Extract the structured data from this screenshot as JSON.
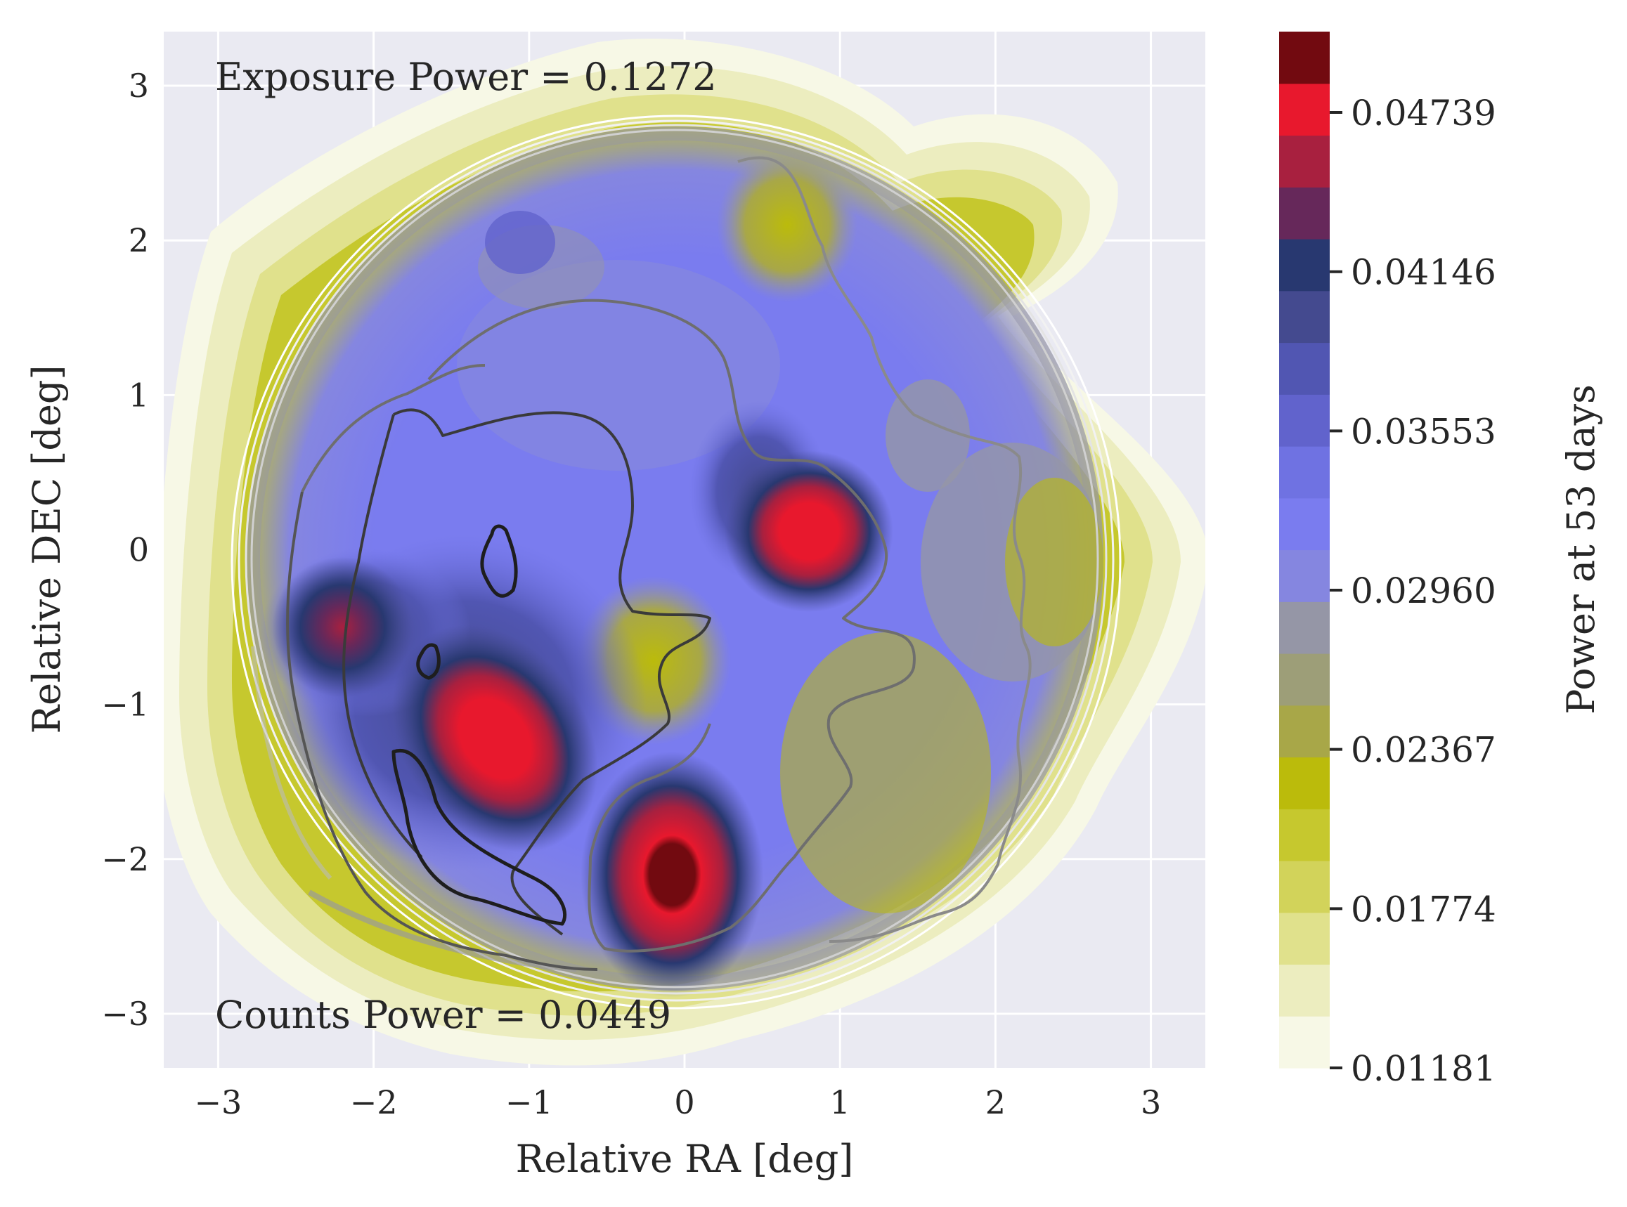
{
  "chart_data": {
    "type": "heatmap",
    "title": "",
    "xlabel": "Relative RA [deg]",
    "ylabel": "Relative DEC [deg]",
    "xlim": [
      -3.35,
      3.35
    ],
    "ylim": [
      -3.35,
      3.35
    ],
    "xticks": [
      -3,
      -2,
      -1,
      0,
      1,
      2,
      3
    ],
    "yticks": [
      -3,
      -2,
      -1,
      0,
      1,
      2,
      3
    ],
    "xtick_labels": [
      "−3",
      "−2",
      "−1",
      "0",
      "1",
      "2",
      "3"
    ],
    "ytick_labels": [
      "−3",
      "−2",
      "−1",
      "0",
      "1",
      "2",
      "3"
    ],
    "grid": true,
    "annotations": {
      "exposure": "Exposure Power = 0.1272",
      "counts": "Counts Power = 0.0449"
    },
    "colorbar": {
      "label": "Power at 53 days",
      "vmin": 0.01181,
      "vmax": 0.0504,
      "ticks": [
        0.01181,
        0.01774,
        0.02367,
        0.0296,
        0.03553,
        0.04146,
        0.04739
      ],
      "tick_labels": [
        "0.01181",
        "0.01774",
        "0.02367",
        "0.02960",
        "0.03553",
        "0.04146",
        "0.04739"
      ],
      "levels": [
        "#f7f8e6",
        "#ecedbf",
        "#e0e18c",
        "#d2d35a",
        "#c6c82e",
        "#bbbb0b",
        "#a8a748",
        "#9d9e78",
        "#9596a6",
        "#8586e0",
        "#7a7cef",
        "#6f72e2",
        "#6163cc",
        "#5156b2",
        "#444a8f",
        "#283870",
        "#66285a",
        "#a8203f",
        "#e8182d",
        "#720a10"
      ]
    },
    "power_peaks": [
      {
        "ra": 0.8,
        "dec": 0.12,
        "level": "high"
      },
      {
        "ra": -0.08,
        "dec": -2.1,
        "level": "max"
      },
      {
        "ra": -1.22,
        "dec": -1.22,
        "level": "high"
      },
      {
        "ra": -2.2,
        "dec": -0.5,
        "level": "high"
      }
    ]
  }
}
